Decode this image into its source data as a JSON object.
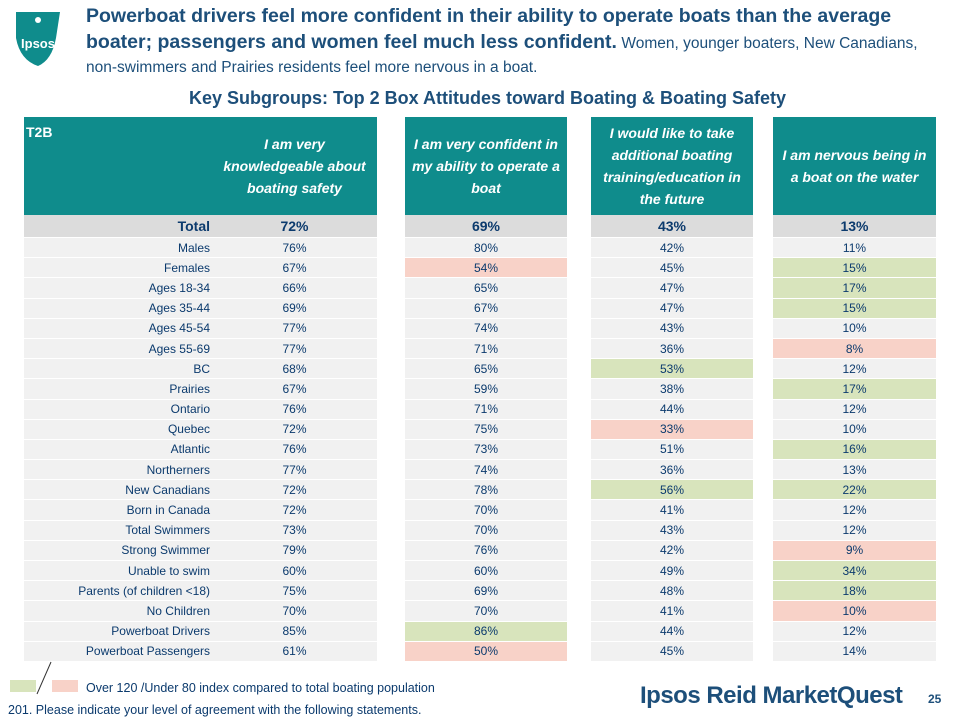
{
  "logo": {
    "text": "Ipsos"
  },
  "headline": {
    "bold": "Powerboat drivers feel more confident in their ability to operate boats than the average boater; passengers and women feel much less confident.",
    "sub": "Women, younger boaters, New Canadians, non-swimmers and Prairies residents feel more nervous in a boat."
  },
  "subtitle": "Key Subgroups: Top 2 Box Attitudes toward Boating & Boating Safety",
  "table": {
    "corner": "T2B",
    "headers": [
      "I am very knowledgeable about boating safety",
      "I am very confident in my ability to operate a boat",
      "I would like to take additional boating training/education in the future",
      "I am nervous being in a boat on the water"
    ],
    "rows": [
      {
        "label": "Total",
        "values": [
          "72%",
          "69%",
          "43%",
          "13%"
        ],
        "flags": [
          "",
          "",
          "",
          ""
        ]
      },
      {
        "label": "Males",
        "values": [
          "76%",
          "80%",
          "42%",
          "11%"
        ],
        "flags": [
          "",
          "",
          "",
          ""
        ]
      },
      {
        "label": "Females",
        "values": [
          "67%",
          "54%",
          "45%",
          "15%"
        ],
        "flags": [
          "",
          "under",
          "",
          "over"
        ]
      },
      {
        "label": "Ages 18-34",
        "values": [
          "66%",
          "65%",
          "47%",
          "17%"
        ],
        "flags": [
          "",
          "",
          "",
          "over"
        ]
      },
      {
        "label": "Ages 35-44",
        "values": [
          "69%",
          "67%",
          "47%",
          "15%"
        ],
        "flags": [
          "",
          "",
          "",
          "over"
        ]
      },
      {
        "label": "Ages 45-54",
        "values": [
          "77%",
          "74%",
          "43%",
          "10%"
        ],
        "flags": [
          "",
          "",
          "",
          ""
        ]
      },
      {
        "label": "Ages 55-69",
        "values": [
          "77%",
          "71%",
          "36%",
          "8%"
        ],
        "flags": [
          "",
          "",
          "",
          "under"
        ]
      },
      {
        "label": "BC",
        "values": [
          "68%",
          "65%",
          "53%",
          "12%"
        ],
        "flags": [
          "",
          "",
          "over",
          ""
        ]
      },
      {
        "label": "Prairies",
        "values": [
          "67%",
          "59%",
          "38%",
          "17%"
        ],
        "flags": [
          "",
          "",
          "",
          "over"
        ]
      },
      {
        "label": "Ontario",
        "values": [
          "76%",
          "71%",
          "44%",
          "12%"
        ],
        "flags": [
          "",
          "",
          "",
          ""
        ]
      },
      {
        "label": "Quebec",
        "values": [
          "72%",
          "75%",
          "33%",
          "10%"
        ],
        "flags": [
          "",
          "",
          "under",
          ""
        ]
      },
      {
        "label": "Atlantic",
        "values": [
          "76%",
          "73%",
          "51%",
          "16%"
        ],
        "flags": [
          "",
          "",
          "",
          "over"
        ]
      },
      {
        "label": "Northerners",
        "values": [
          "77%",
          "74%",
          "36%",
          "13%"
        ],
        "flags": [
          "",
          "",
          "",
          ""
        ]
      },
      {
        "label": "New Canadians",
        "values": [
          "72%",
          "78%",
          "56%",
          "22%"
        ],
        "flags": [
          "",
          "",
          "over",
          "over"
        ]
      },
      {
        "label": "Born in Canada",
        "values": [
          "72%",
          "70%",
          "41%",
          "12%"
        ],
        "flags": [
          "",
          "",
          "",
          ""
        ]
      },
      {
        "label": "Total Swimmers",
        "values": [
          "73%",
          "70%",
          "43%",
          "12%"
        ],
        "flags": [
          "",
          "",
          "",
          ""
        ]
      },
      {
        "label": "Strong Swimmer",
        "values": [
          "79%",
          "76%",
          "42%",
          "9%"
        ],
        "flags": [
          "",
          "",
          "",
          "under"
        ]
      },
      {
        "label": "Unable to swim",
        "values": [
          "60%",
          "60%",
          "49%",
          "34%"
        ],
        "flags": [
          "",
          "",
          "",
          "over"
        ]
      },
      {
        "label": "Parents (of children <18)",
        "values": [
          "75%",
          "69%",
          "48%",
          "18%"
        ],
        "flags": [
          "",
          "",
          "",
          "over"
        ]
      },
      {
        "label": "No Children",
        "values": [
          "70%",
          "70%",
          "41%",
          "10%"
        ],
        "flags": [
          "",
          "",
          "",
          "under"
        ]
      },
      {
        "label": "Powerboat Drivers",
        "values": [
          "85%",
          "86%",
          "44%",
          "12%"
        ],
        "flags": [
          "",
          "over",
          "",
          ""
        ]
      },
      {
        "label": "Powerboat Passengers",
        "values": [
          "61%",
          "50%",
          "45%",
          "14%"
        ],
        "flags": [
          "",
          "under",
          "",
          ""
        ]
      }
    ]
  },
  "colors": {
    "header_bg": "#0f8c8c",
    "over_index": "#d8e4bc",
    "under_index": "#f8d2c8",
    "text": "#0b3a6d"
  },
  "legend": {
    "text": "Over 120 /Under 80 index compared to total boating population"
  },
  "footnote": "201. Please indicate your level of agreement with the following statements.",
  "brand": "Ipsos Reid MarketQuest",
  "page_number": "25"
}
